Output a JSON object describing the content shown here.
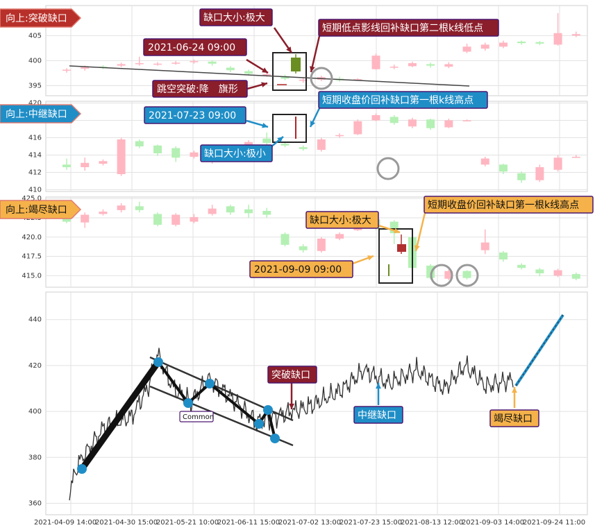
{
  "colors": {
    "up": "#ffb6c1",
    "down": "#b4f0b4",
    "dark_red": "#9b2335",
    "blue": "#1b8fcf",
    "orange": "#f5b24a",
    "purple": "#4b1670",
    "price_line": "#333333",
    "highlight_up_top": "#6b8e23",
    "highlight_up_mid": "#b22222",
    "highlight_up_bot": "#b03030"
  },
  "panel1": {
    "tag": "向上:突破缺口",
    "y_ticks": [
      "405",
      "400",
      "395"
    ],
    "ann_size": "缺口大小:极大",
    "ann_date": "2021-06-24 09:00",
    "ann_shadow": "短期低点影线回补缺口第二根k线低点",
    "ann_pattern": "跳空突破:降　旗形"
  },
  "panel2": {
    "tag": "向上:中继缺口",
    "y_ticks": [
      "420",
      "418",
      "416",
      "414",
      "412",
      "410"
    ],
    "ann_date": "2021-07-23 09:00",
    "ann_close": "短期收盘价回补缺口第一根k线高点",
    "ann_size": "缺口大小:极小"
  },
  "panel3": {
    "tag": "向上:竭尽缺口",
    "y_ticks": [
      "425.0",
      "422.5",
      "420.0",
      "417.5",
      "415.0"
    ],
    "ann_size": "缺口大小:极大",
    "ann_close": "短期收盘价回补缺口第一根k线高点",
    "ann_date": "2021-09-09 09:00"
  },
  "main": {
    "y_ticks": [
      "440",
      "420",
      "400",
      "380",
      "360"
    ],
    "x_ticks": [
      "2021-04-09 14:00",
      "2021-04-30 15:00",
      "2021-05-21 10:00",
      "2021-06-11 15:00",
      "2021-07-02 13:00",
      "2021-07-23 15:00",
      "2021-08-13 12:00",
      "2021-09-03 14:00",
      "2021-09-24 11:00"
    ],
    "label_breakaway": "突破缺口",
    "label_runaway": "中继缺口",
    "label_exhaustion": "竭尽缺口",
    "label_common": "Common"
  },
  "chart_data": [
    {
      "type": "line",
      "title": "",
      "x": [
        "2021-04-09 14:00",
        "2021-04-12",
        "2021-04-20",
        "2021-04-30 15:00",
        "2021-05-10",
        "2021-05-21 10:00",
        "2021-05-25",
        "2021-06-01",
        "2021-06-08",
        "2021-06-11 15:00",
        "2021-06-18",
        "2021-06-24 09:00",
        "2021-07-02 13:00",
        "2021-07-12",
        "2021-07-23 15:00",
        "2021-08-02",
        "2021-08-13 12:00",
        "2021-08-24",
        "2021-09-03 14:00",
        "2021-09-09 09:00",
        "2021-09-24 11:00"
      ],
      "series": [
        {
          "values": [
            365,
            377,
            393,
            398,
            411,
            425,
            410,
            404,
            414,
            407,
            395,
            398,
            402,
            409,
            418,
            412,
            418,
            410,
            420,
            414,
            448
          ]
        }
      ],
      "ylim": [
        355,
        452
      ],
      "y_ticks": [
        360,
        380,
        400,
        420,
        440
      ],
      "zigzag": [
        {
          "x": "2021-04-12",
          "y": 374
        },
        {
          "x": "2021-05-21 10:00",
          "y": 425
        },
        {
          "x": "2021-05-28",
          "y": 405
        },
        {
          "x": "2021-06-02",
          "y": 415
        },
        {
          "x": "2021-06-17",
          "y": 395
        },
        {
          "x": "2021-06-20",
          "y": 402
        },
        {
          "x": "2021-06-22",
          "y": 388
        }
      ],
      "channel": {
        "upper": [
          {
            "x": "2021-05-21 10:00",
            "y": 428
          },
          {
            "x": "2021-06-27",
            "y": 398
          }
        ],
        "lower": [
          {
            "x": "2021-05-21 10:00",
            "y": 414
          },
          {
            "x": "2021-06-27",
            "y": 385
          }
        ]
      },
      "gaps": [
        "突破缺口",
        "中继缺口",
        "竭尽缺口"
      ],
      "projection": [
        {
          "x": "2021-09-09 09:00",
          "y": 415
        },
        {
          "x": "2021-09-24 11:00",
          "y": 448
        }
      ]
    },
    {
      "type": "candlestick",
      "title": "向上:突破缺口",
      "ylim": [
        393,
        411
      ],
      "y_ticks": [
        395,
        400,
        405
      ],
      "candles": [
        {
          "o": 398.0,
          "c": 398.2,
          "h": 398.5,
          "l": 397.6
        },
        {
          "o": 398.4,
          "c": 398.7,
          "h": 399.0,
          "l": 398.0
        },
        {
          "o": 398.8,
          "c": 398.6,
          "h": 399.1,
          "l": 398.3
        },
        {
          "o": 399.0,
          "c": 399.3,
          "h": 399.6,
          "l": 398.7
        },
        {
          "o": 399.4,
          "c": 399.5,
          "h": 400.8,
          "l": 399.0
        },
        {
          "o": 399.3,
          "c": 399.4,
          "h": 399.7,
          "l": 399.0
        },
        {
          "o": 399.5,
          "c": 399.6,
          "h": 399.9,
          "l": 399.2
        },
        {
          "o": 399.7,
          "c": 399.9,
          "h": 400.2,
          "l": 399.4
        },
        {
          "o": 399.8,
          "c": 399.4,
          "h": 400.1,
          "l": 399.0
        },
        {
          "o": 398.6,
          "c": 398.1,
          "h": 398.9,
          "l": 397.7
        },
        {
          "o": 397.9,
          "c": 397.4,
          "h": 398.2,
          "l": 397.0
        },
        {
          "o": 397.1,
          "c": 397.3,
          "h": 397.6,
          "l": 396.8
        },
        {
          "o": 396.9,
          "c": 396.4,
          "h": 397.2,
          "l": 396.1
        },
        {
          "o": 396.0,
          "c": 396.2,
          "h": 396.5,
          "l": 395.6
        },
        {
          "o": 396.2,
          "c": 396.7,
          "h": 397.0,
          "l": 395.9
        },
        {
          "o": 396.4,
          "c": 396.1,
          "h": 396.8,
          "l": 395.8
        },
        {
          "o": 396.3,
          "c": 396.3,
          "h": 396.5,
          "l": 396.1
        },
        {
          "o": 398.3,
          "c": 401.0,
          "h": 401.4,
          "l": 398.2
        },
        {
          "o": 398.6,
          "c": 398.8,
          "h": 399.2,
          "l": 398.3
        },
        {
          "o": 398.9,
          "c": 399.5,
          "h": 399.8,
          "l": 398.7
        },
        {
          "o": 399.3,
          "c": 399.0,
          "h": 399.6,
          "l": 398.6
        },
        {
          "o": 398.8,
          "c": 399.3,
          "h": 399.7,
          "l": 398.5
        },
        {
          "o": 401.8,
          "c": 402.8,
          "h": 403.4,
          "l": 401.5
        },
        {
          "o": 402.4,
          "c": 403.2,
          "h": 403.6,
          "l": 402.0
        },
        {
          "o": 402.8,
          "c": 403.6,
          "h": 404.0,
          "l": 402.5
        },
        {
          "o": 403.8,
          "c": 403.5,
          "h": 404.0,
          "l": 403.2
        },
        {
          "o": 403.7,
          "c": 403.4,
          "h": 403.9,
          "l": 403.1
        },
        {
          "o": 403.2,
          "c": 405.5,
          "h": 409.5,
          "l": 403.0
        },
        {
          "o": 405.0,
          "c": 405.3,
          "h": 405.8,
          "l": 404.7
        }
      ]
    },
    {
      "type": "candlestick",
      "title": "向上:中继缺口",
      "ylim": [
        409.8,
        420.2
      ],
      "y_ticks": [
        410,
        412,
        414,
        416,
        418,
        420
      ],
      "candles": [
        {
          "o": 412.9,
          "c": 412.6,
          "h": 413.6,
          "l": 412.3
        },
        {
          "o": 412.6,
          "c": 413.1,
          "h": 413.7,
          "l": 412.2
        },
        {
          "o": 413.0,
          "c": 413.3,
          "h": 413.5,
          "l": 412.8
        },
        {
          "o": 411.8,
          "c": 415.8,
          "h": 416.0,
          "l": 411.6
        },
        {
          "o": 415.6,
          "c": 415.0,
          "h": 415.8,
          "l": 414.8
        },
        {
          "o": 415.1,
          "c": 414.2,
          "h": 415.2,
          "l": 413.9
        },
        {
          "o": 414.8,
          "c": 413.7,
          "h": 415.0,
          "l": 413.2
        },
        {
          "o": 413.8,
          "c": 414.3,
          "h": 414.5,
          "l": 413.6
        },
        {
          "o": 414.3,
          "c": 415.0,
          "h": 415.2,
          "l": 413.0
        },
        {
          "o": 414.7,
          "c": 414.8,
          "h": 415.0,
          "l": 414.5
        },
        {
          "o": 415.0,
          "c": 415.5,
          "h": 415.7,
          "l": 414.8
        },
        {
          "o": 415.9,
          "c": 415.4,
          "h": 416.6,
          "l": 415.2
        },
        {
          "o": 415.3,
          "c": 415.1,
          "h": 415.5,
          "l": 414.9
        },
        {
          "o": 414.9,
          "c": 414.7,
          "h": 415.1,
          "l": 414.5
        },
        {
          "o": 414.6,
          "c": 415.8,
          "h": 416.0,
          "l": 414.4
        },
        {
          "o": 416.2,
          "c": 416.3,
          "h": 416.5,
          "l": 416.0
        },
        {
          "o": 416.4,
          "c": 417.9,
          "h": 418.1,
          "l": 416.3
        },
        {
          "o": 418.0,
          "c": 418.6,
          "h": 418.8,
          "l": 417.9
        },
        {
          "o": 418.4,
          "c": 417.7,
          "h": 418.6,
          "l": 417.5
        },
        {
          "o": 417.3,
          "c": 418.1,
          "h": 418.3,
          "l": 417.1
        },
        {
          "o": 418.1,
          "c": 417.1,
          "h": 418.2,
          "l": 416.9
        },
        {
          "o": 417.2,
          "c": 418.0,
          "h": 418.2,
          "l": 417.1
        },
        {
          "o": 418.0,
          "c": 418.0,
          "h": 418.1,
          "l": 417.9
        },
        {
          "o": 412.9,
          "c": 413.6,
          "h": 413.8,
          "l": 412.7
        },
        {
          "o": 412.9,
          "c": 412.1,
          "h": 413.0,
          "l": 411.8
        },
        {
          "o": 411.9,
          "c": 411.1,
          "h": 412.1,
          "l": 410.8
        },
        {
          "o": 411.1,
          "c": 412.6,
          "h": 412.9,
          "l": 410.9
        },
        {
          "o": 412.3,
          "c": 413.7,
          "h": 414.0,
          "l": 412.1
        },
        {
          "o": 413.8,
          "c": 413.8,
          "h": 414.0,
          "l": 413.7
        }
      ]
    },
    {
      "type": "candlestick",
      "title": "向上:竭尽缺口",
      "ylim": [
        413.5,
        425.2
      ],
      "y_ticks": [
        415.0,
        417.5,
        420.0,
        422.5,
        425.0
      ],
      "candles": [
        {
          "o": 423.2,
          "c": 422.0,
          "h": 423.5,
          "l": 421.8
        },
        {
          "o": 421.9,
          "c": 422.9,
          "h": 423.2,
          "l": 421.2
        },
        {
          "o": 423.0,
          "c": 423.3,
          "h": 423.6,
          "l": 422.8
        },
        {
          "o": 423.5,
          "c": 424.1,
          "h": 424.4,
          "l": 423.2
        },
        {
          "o": 424.0,
          "c": 423.5,
          "h": 424.6,
          "l": 423.2
        },
        {
          "o": 423.0,
          "c": 421.6,
          "h": 423.2,
          "l": 421.4
        },
        {
          "o": 421.6,
          "c": 422.9,
          "h": 423.1,
          "l": 421.4
        },
        {
          "o": 422.0,
          "c": 422.6,
          "h": 423.0,
          "l": 421.8
        },
        {
          "o": 423.0,
          "c": 423.7,
          "h": 424.2,
          "l": 422.8
        },
        {
          "o": 424.0,
          "c": 423.2,
          "h": 424.2,
          "l": 422.9
        },
        {
          "o": 423.6,
          "c": 423.1,
          "h": 424.2,
          "l": 422.5
        },
        {
          "o": 423.4,
          "c": 422.9,
          "h": 423.8,
          "l": 422.5
        },
        {
          "o": 420.4,
          "c": 419.0,
          "h": 420.6,
          "l": 418.8
        },
        {
          "o": 418.8,
          "c": 418.3,
          "h": 419.1,
          "l": 418.0
        },
        {
          "o": 418.2,
          "c": 419.8,
          "h": 420.0,
          "l": 418.0
        },
        {
          "o": 419.8,
          "c": 420.4,
          "h": 420.6,
          "l": 419.6
        },
        {
          "o": 420.9,
          "c": 422.4,
          "h": 422.6,
          "l": 420.8
        },
        {
          "o": 422.3,
          "c": 421.1,
          "h": 422.5,
          "l": 420.9
        },
        {
          "o": 422.0,
          "c": 420.5,
          "h": 422.2,
          "l": 419.1
        },
        {
          "o": 420.0,
          "c": 416.0,
          "h": 420.2,
          "l": 415.8
        },
        {
          "o": 416.3,
          "c": 414.7,
          "h": 416.5,
          "l": 414.5
        },
        {
          "o": 414.6,
          "c": 415.6,
          "h": 415.8,
          "l": 414.4
        },
        {
          "o": 415.6,
          "c": 414.7,
          "h": 415.7,
          "l": 414.5
        },
        {
          "o": 418.3,
          "c": 419.3,
          "h": 421.0,
          "l": 417.8
        },
        {
          "o": 418.0,
          "c": 417.1,
          "h": 418.2,
          "l": 416.8
        },
        {
          "o": 416.4,
          "c": 416.0,
          "h": 416.6,
          "l": 415.8
        },
        {
          "o": 415.8,
          "c": 415.3,
          "h": 416.0,
          "l": 414.9
        },
        {
          "o": 415.0,
          "c": 415.7,
          "h": 415.9,
          "l": 414.8
        },
        {
          "o": 415.2,
          "c": 414.6,
          "h": 415.4,
          "l": 414.4
        }
      ]
    }
  ]
}
